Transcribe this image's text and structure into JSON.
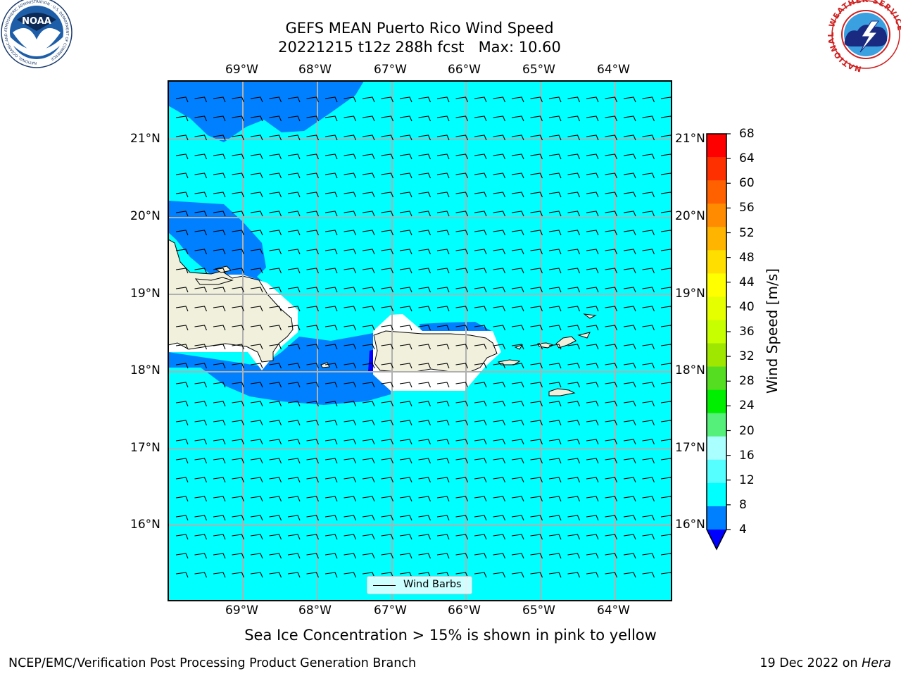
{
  "header": {
    "title_line1": "GEFS MEAN Puerto Rico Wind Speed",
    "title_line2": "20221215 t12z 288h fcst   Max: 10.60"
  },
  "logos": {
    "left": "noaa-logo",
    "left_text": "NOAA",
    "left_ring_text": "NATIONAL OCEANIC AND ATMOSPHERIC ADMINISTRATION · U.S. DEPARTMENT OF COMMERCE",
    "right": "nws-logo",
    "right_ring_text": "NATIONAL WEATHER SERVICE"
  },
  "map": {
    "lon_labels": [
      "69°W",
      "68°W",
      "67°W",
      "66°W",
      "65°W",
      "64°W"
    ],
    "lat_labels": [
      "21°N",
      "20°N",
      "19°N",
      "18°N",
      "17°N",
      "16°N"
    ],
    "legend_label": "Wind Barbs",
    "colors": {
      "light": "#00ffff",
      "mid": "#0080ff",
      "dark": "#0000ff",
      "land": "#f0f0dc"
    }
  },
  "colorbar": {
    "ticks": [
      "68",
      "64",
      "60",
      "56",
      "52",
      "48",
      "44",
      "40",
      "36",
      "32",
      "28",
      "24",
      "20",
      "16",
      "12",
      "8",
      "4"
    ],
    "colors": [
      "#ff0000",
      "#ff3000",
      "#ff6000",
      "#ff8c00",
      "#ffb400",
      "#ffde00",
      "#ffff00",
      "#e6ff00",
      "#c8ff00",
      "#9fe600",
      "#55dd22",
      "#00ee00",
      "#55f07a",
      "#aaffff",
      "#55ffff",
      "#00ffff",
      "#0080ff"
    ],
    "under_color": "#0000ff",
    "label": "Wind Speed [m/s]"
  },
  "subtitle": "Sea Ice Concentration > 15% is shown in pink to yellow",
  "footer": {
    "left": "NCEP/EMC/Verification Post Processing Product Generation Branch",
    "right_prefix": "19 Dec 2022 on ",
    "right_host": "Hera"
  }
}
